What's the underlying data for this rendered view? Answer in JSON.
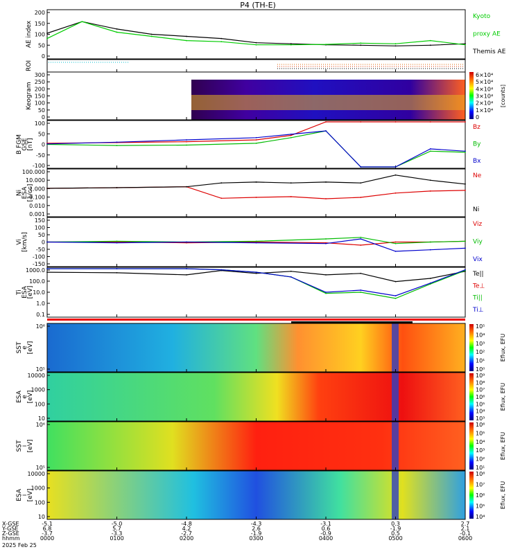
{
  "title": "P4 (TH-E)",
  "footer": {
    "date": "2025 Feb 25",
    "row_labels": [
      "X-GSE",
      "Y-GSE",
      "Z-GSE",
      "hhmm"
    ],
    "ticks": [
      {
        "x": "-5.1",
        "y": "6.8",
        "z": "-3.7",
        "t": "0000"
      },
      {
        "x": "-5.0",
        "y": "5.7",
        "z": "-3.3",
        "t": "0100"
      },
      {
        "x": "-4.8",
        "y": "4.2",
        "z": "-2.7",
        "t": "0200"
      },
      {
        "x": "-4.3",
        "y": "2.6",
        "z": "-1.9",
        "t": "0300"
      },
      {
        "x": "-3.1",
        "y": "0.6",
        "z": "-0.9",
        "t": "0400"
      },
      {
        "x": "0.3",
        "y": "-1.9",
        "z": "0.5",
        "t": "0500"
      },
      {
        "x": "2.7",
        "y": "2.1",
        "z": "-0.1",
        "t": "0600"
      }
    ]
  },
  "panels": {
    "ae": {
      "ylabel": "AE index",
      "ticks": [
        "200",
        "150",
        "100",
        "50",
        "0"
      ],
      "legend": [
        {
          "text": "Kyoto",
          "color": "#00cc00"
        },
        {
          "text": "proxy AE",
          "color": "#00cc00"
        },
        {
          "text": "Themis AE",
          "color": "#000000"
        }
      ]
    },
    "roi": {
      "ylabel": "ROI"
    },
    "keogram": {
      "ylabel": "Keogram",
      "ticks": [
        "300",
        "250",
        "200",
        "150",
        "100",
        "50",
        "0"
      ],
      "cbar_label": "[counts]",
      "cbar_ticks": [
        "6×10⁴",
        "5×10⁴",
        "4×10⁴",
        "3×10⁴",
        "2×10⁴",
        "1×10⁴",
        "0"
      ]
    },
    "bfgm": {
      "ylabel1": "B FGM",
      "ylabel2": "GSE",
      "ylabel3": "[nT]",
      "ticks": [
        "100",
        "50",
        "0",
        "-50",
        "-100"
      ],
      "legend": [
        {
          "text": "Bz",
          "color": "#dd0000"
        },
        {
          "text": "By",
          "color": "#00bb00"
        },
        {
          "text": "Bx",
          "color": "#0000cc"
        }
      ]
    },
    "ni": {
      "ylabel1": "Ni",
      "ylabel2": "ESA",
      "ylabel3": "[1/cc]",
      "ticks": [
        "100.000",
        "10.000",
        "1.000",
        "0.100",
        "0.010",
        "0.001"
      ],
      "legend": [
        {
          "text": "Ne",
          "color": "#dd0000"
        },
        {
          "text": "Ni",
          "color": "#000000"
        }
      ]
    },
    "vi": {
      "ylabel1": "Vi",
      "ylabel2": "[km/s]",
      "ticks": [
        "150",
        "100",
        "50",
        "0",
        "-50",
        "-100",
        "-150"
      ],
      "legend": [
        {
          "text": "Viz",
          "color": "#dd0000"
        },
        {
          "text": "Viy",
          "color": "#00bb00"
        },
        {
          "text": "Vix",
          "color": "#0000cc"
        }
      ]
    },
    "ti": {
      "ylabel1": "Ti",
      "ylabel2": "ESA",
      "ylabel3": "[eV]",
      "ticks": [
        "1000.0",
        "100.0",
        "10.0",
        "1.0",
        "0.1"
      ],
      "legend": [
        {
          "text": "Te||",
          "color": "#000000"
        },
        {
          "text": "Te⊥",
          "color": "#dd0000"
        },
        {
          "text": "Ti||",
          "color": "#00bb00"
        },
        {
          "text": "Ti⊥",
          "color": "#0000cc"
        }
      ]
    },
    "sst_e": {
      "ylabel1": "SST",
      "ylabel2": "e",
      "ylabel3": "[eV]",
      "ticks": [
        "10⁶",
        "10⁵"
      ],
      "cbar_label": "Eflux, EFU",
      "cbar_ticks": [
        "10⁵",
        "10⁴",
        "10³",
        "10²",
        "10¹",
        "10⁰"
      ]
    },
    "esa_e": {
      "ylabel1": "ESA",
      "ylabel2": "e",
      "ylabel3": "[eV]",
      "ticks": [
        "10000",
        "1000",
        "100",
        "10"
      ],
      "cbar_label": "Eflux, EFU",
      "cbar_ticks": [
        "10⁹",
        "10⁸",
        "10⁷",
        "10⁶",
        "10⁵",
        "10⁴",
        "10³"
      ]
    },
    "sst_i": {
      "ylabel1": "SST",
      "ylabel2": "i",
      "ylabel3": "[eV]",
      "ticks": [
        "10⁶",
        "10⁵"
      ],
      "cbar_label": "Eflux, EFU",
      "cbar_ticks": [
        "10⁶",
        "10⁵",
        "10⁴",
        "10³",
        "10²",
        "10¹"
      ]
    },
    "esa_i": {
      "ylabel1": "ESA",
      "ylabel2": "i",
      "ylabel3": "[eV]",
      "ticks": [
        "10000",
        "1000",
        "100",
        "10"
      ],
      "cbar_label": "Eflux, EFU",
      "cbar_ticks": [
        "10⁸",
        "10⁷",
        "10⁶",
        "10⁵",
        "10⁴"
      ]
    }
  },
  "chart_data": [
    {
      "type": "line",
      "ylabel": "AE index",
      "ylim": [
        -20,
        200
      ],
      "x": [
        "0000",
        "0030",
        "0100",
        "0130",
        "0200",
        "0230",
        "0300",
        "0330",
        "0400",
        "0430",
        "0500",
        "0530",
        "0600"
      ],
      "series": [
        {
          "name": "Themis AE",
          "color": "#000000",
          "values": [
            95,
            150,
            115,
            90,
            80,
            70,
            50,
            45,
            40,
            38,
            35,
            38,
            45
          ]
        },
        {
          "name": "Kyoto proxy AE",
          "color": "#00cc00",
          "values": [
            70,
            150,
            100,
            80,
            60,
            55,
            40,
            40,
            42,
            48,
            45,
            60,
            40
          ]
        }
      ]
    },
    {
      "type": "line",
      "ylabel": "B FGM GSE [nT]",
      "ylim": [
        -100,
        100
      ],
      "x": [
        "0000",
        "0100",
        "0200",
        "0300",
        "0330",
        "0400",
        "0430",
        "0500",
        "0530",
        "0600"
      ],
      "series": [
        {
          "name": "Bz",
          "color": "#dd0000",
          "values": [
            5,
            8,
            12,
            20,
            40,
            100,
            100,
            100,
            100,
            100
          ]
        },
        {
          "name": "By",
          "color": "#00bb00",
          "values": [
            0,
            -5,
            -3,
            5,
            30,
            60,
            -100,
            -100,
            -30,
            -35
          ]
        },
        {
          "name": "Bx",
          "color": "#0000cc",
          "values": [
            2,
            10,
            20,
            30,
            45,
            60,
            -100,
            -100,
            -20,
            -30
          ]
        }
      ]
    },
    {
      "type": "line",
      "ylabel": "Ni ESA [1/cc]",
      "ylim": [
        0.001,
        100
      ],
      "x": [
        "0000",
        "0100",
        "0200",
        "0230",
        "0300",
        "0330",
        "0400",
        "0430",
        "0500",
        "0530",
        "0600"
      ],
      "series": [
        {
          "name": "Ne",
          "color": "#dd0000",
          "values": [
            1,
            1.2,
            1.5,
            0.08,
            0.1,
            0.12,
            0.07,
            0.1,
            0.3,
            0.5,
            0.6
          ]
        },
        {
          "name": "Ni",
          "color": "#000000",
          "values": [
            1,
            1.2,
            1.5,
            4,
            5,
            4,
            5,
            4,
            30,
            8,
            3
          ]
        }
      ]
    },
    {
      "type": "line",
      "ylabel": "Vi [km/s]",
      "ylim": [
        -150,
        150
      ],
      "x": [
        "0000",
        "0100",
        "0200",
        "0300",
        "0400",
        "0430",
        "0500",
        "0530",
        "0600"
      ],
      "series": [
        {
          "name": "Viz",
          "color": "#dd0000",
          "values": [
            0,
            0,
            -5,
            0,
            -5,
            -20,
            0,
            0,
            5
          ]
        },
        {
          "name": "Viy",
          "color": "#00bb00",
          "values": [
            0,
            5,
            0,
            5,
            20,
            30,
            -10,
            0,
            5
          ]
        },
        {
          "name": "Vix",
          "color": "#0000cc",
          "values": [
            0,
            -5,
            0,
            -5,
            -10,
            20,
            -60,
            -50,
            -40
          ]
        }
      ]
    },
    {
      "type": "line",
      "ylabel": "Ti ESA [eV]",
      "ylim": [
        0.1,
        1000
      ],
      "x": [
        "0000",
        "0100",
        "0200",
        "0230",
        "0300",
        "0330",
        "0400",
        "0430",
        "0500",
        "0530",
        "0600"
      ],
      "series": [
        {
          "name": "Te||",
          "color": "#000000",
          "values": [
            500,
            450,
            300,
            700,
            400,
            600,
            300,
            400,
            80,
            150,
            600
          ]
        },
        {
          "name": "Ti||",
          "color": "#00bb00",
          "values": [
            1000,
            1000,
            1000,
            800,
            500,
            200,
            8,
            10,
            3,
            50,
            700
          ]
        },
        {
          "name": "Ti⊥",
          "color": "#0000cc",
          "values": [
            1000,
            1000,
            1000,
            800,
            500,
            200,
            10,
            15,
            5,
            60,
            800
          ]
        }
      ]
    }
  ]
}
